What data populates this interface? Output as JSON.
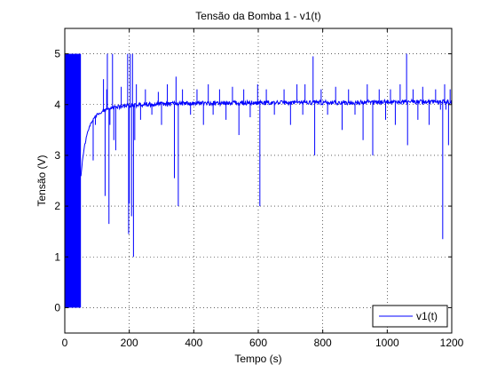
{
  "chart_data": {
    "type": "line",
    "title": "Tensão da Bomba 1 - v1(t)",
    "xlabel": "Tempo (s)",
    "ylabel": "Tensão (V)",
    "xlim": [
      0,
      1200
    ],
    "ylim": [
      -0.5,
      5.5
    ],
    "x_ticks": [
      0,
      200,
      400,
      600,
      800,
      1000,
      1200
    ],
    "y_ticks": [
      0,
      1,
      2,
      3,
      4,
      5
    ],
    "grid": true,
    "grid_style": "dotted",
    "legend_position": "bottom-right",
    "series": [
      {
        "name": "v1(t)",
        "color": "#0000ff",
        "saturated_band": {
          "x_start": 0,
          "x_end": 50,
          "y_min": 0,
          "y_max": 5
        },
        "baseline": {
          "x": [
            50,
            55,
            60,
            70,
            80,
            90,
            100,
            120,
            140,
            160,
            180,
            200,
            250,
            300,
            400,
            500,
            600,
            700,
            800,
            900,
            1000,
            1100,
            1200
          ],
          "y": [
            2.6,
            2.9,
            3.15,
            3.45,
            3.62,
            3.72,
            3.8,
            3.88,
            3.92,
            3.95,
            3.97,
            3.98,
            4.0,
            4.01,
            4.02,
            4.03,
            4.03,
            4.04,
            4.04,
            4.04,
            4.05,
            4.05,
            4.05
          ]
        },
        "spikes": [
          {
            "x": 88,
            "y": 2.9
          },
          {
            "x": 95,
            "y": 3.6
          },
          {
            "x": 120,
            "y": 4.5
          },
          {
            "x": 125,
            "y": 2.2
          },
          {
            "x": 130,
            "y": 4.3
          },
          {
            "x": 132,
            "y": 5.0
          },
          {
            "x": 137,
            "y": 1.65
          },
          {
            "x": 140,
            "y": 3.6
          },
          {
            "x": 148,
            "y": 5.0
          },
          {
            "x": 152,
            "y": 3.3
          },
          {
            "x": 158,
            "y": 3.1
          },
          {
            "x": 175,
            "y": 4.35
          },
          {
            "x": 195,
            "y": 5.0
          },
          {
            "x": 198,
            "y": 1.45
          },
          {
            "x": 200,
            "y": 2.05
          },
          {
            "x": 203,
            "y": 5.0
          },
          {
            "x": 207,
            "y": 1.8
          },
          {
            "x": 210,
            "y": 5.0
          },
          {
            "x": 213,
            "y": 1.0
          },
          {
            "x": 217,
            "y": 3.3
          },
          {
            "x": 222,
            "y": 4.4
          },
          {
            "x": 235,
            "y": 3.7
          },
          {
            "x": 250,
            "y": 4.3
          },
          {
            "x": 270,
            "y": 3.8
          },
          {
            "x": 290,
            "y": 4.25
          },
          {
            "x": 300,
            "y": 3.6
          },
          {
            "x": 318,
            "y": 4.4
          },
          {
            "x": 340,
            "y": 2.55
          },
          {
            "x": 345,
            "y": 4.55
          },
          {
            "x": 352,
            "y": 2.0
          },
          {
            "x": 365,
            "y": 4.3
          },
          {
            "x": 390,
            "y": 3.8
          },
          {
            "x": 410,
            "y": 4.3
          },
          {
            "x": 430,
            "y": 3.6
          },
          {
            "x": 445,
            "y": 4.4
          },
          {
            "x": 460,
            "y": 3.8
          },
          {
            "x": 480,
            "y": 4.3
          },
          {
            "x": 500,
            "y": 3.7
          },
          {
            "x": 520,
            "y": 4.35
          },
          {
            "x": 540,
            "y": 3.4
          },
          {
            "x": 555,
            "y": 4.3
          },
          {
            "x": 575,
            "y": 3.75
          },
          {
            "x": 598,
            "y": 4.4
          },
          {
            "x": 605,
            "y": 2.0
          },
          {
            "x": 625,
            "y": 4.3
          },
          {
            "x": 650,
            "y": 3.8
          },
          {
            "x": 680,
            "y": 4.3
          },
          {
            "x": 700,
            "y": 3.6
          },
          {
            "x": 720,
            "y": 4.4
          },
          {
            "x": 738,
            "y": 3.8
          },
          {
            "x": 745,
            "y": 4.4
          },
          {
            "x": 770,
            "y": 4.95
          },
          {
            "x": 775,
            "y": 3.0
          },
          {
            "x": 795,
            "y": 4.3
          },
          {
            "x": 815,
            "y": 3.8
          },
          {
            "x": 840,
            "y": 4.35
          },
          {
            "x": 860,
            "y": 3.5
          },
          {
            "x": 880,
            "y": 4.3
          },
          {
            "x": 900,
            "y": 3.8
          },
          {
            "x": 925,
            "y": 3.3
          },
          {
            "x": 938,
            "y": 4.4
          },
          {
            "x": 955,
            "y": 3.0
          },
          {
            "x": 975,
            "y": 4.3
          },
          {
            "x": 995,
            "y": 3.7
          },
          {
            "x": 1010,
            "y": 4.3
          },
          {
            "x": 1025,
            "y": 3.6
          },
          {
            "x": 1040,
            "y": 4.4
          },
          {
            "x": 1060,
            "y": 5.0
          },
          {
            "x": 1063,
            "y": 3.2
          },
          {
            "x": 1080,
            "y": 4.3
          },
          {
            "x": 1095,
            "y": 3.7
          },
          {
            "x": 1110,
            "y": 4.35
          },
          {
            "x": 1130,
            "y": 3.6
          },
          {
            "x": 1150,
            "y": 4.3
          },
          {
            "x": 1165,
            "y": 3.9
          },
          {
            "x": 1172,
            "y": 1.35
          },
          {
            "x": 1178,
            "y": 4.4
          },
          {
            "x": 1182,
            "y": 3.9
          },
          {
            "x": 1190,
            "y": 3.2
          },
          {
            "x": 1195,
            "y": 4.3
          }
        ]
      }
    ]
  }
}
